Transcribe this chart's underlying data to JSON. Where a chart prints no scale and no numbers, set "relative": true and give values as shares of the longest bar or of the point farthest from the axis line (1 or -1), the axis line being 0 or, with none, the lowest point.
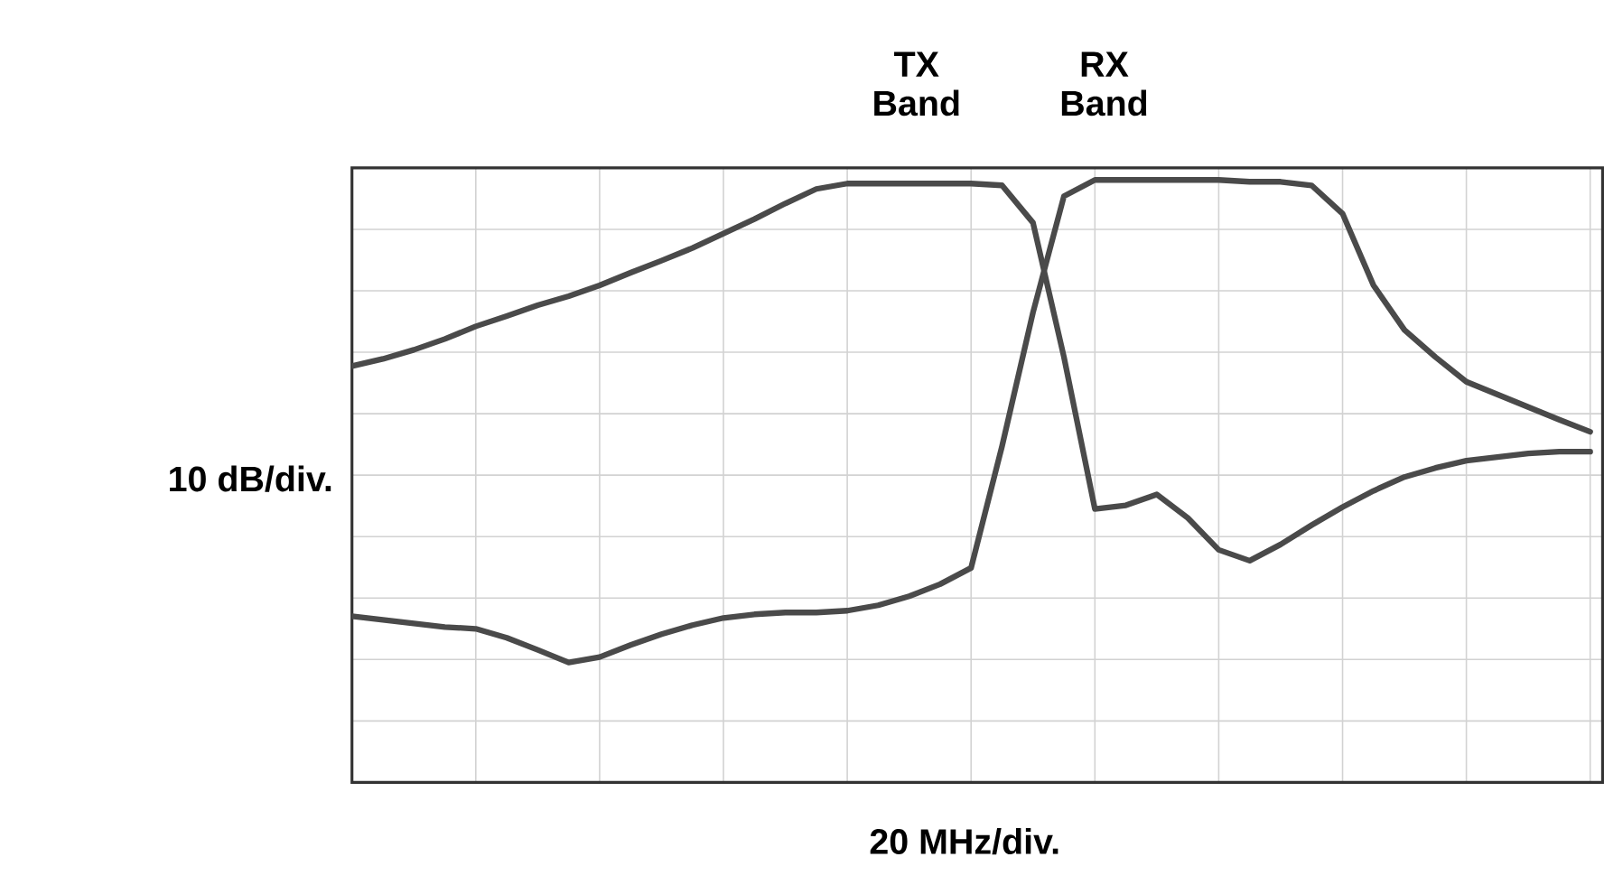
{
  "chart_data": {
    "type": "line",
    "relative": true,
    "xlabel": "20 MHz/div.",
    "ylabel": "10 dB/div.",
    "annotations": [
      "TX Band",
      "RX Band"
    ],
    "categories": [
      null,
      null,
      null,
      null,
      null,
      null,
      null,
      null,
      null,
      null,
      null,
      null,
      null,
      null,
      null,
      null,
      null,
      null,
      null,
      null,
      null,
      null,
      null,
      null,
      null,
      null,
      null,
      null,
      null,
      null,
      null,
      null,
      null,
      null,
      null,
      null,
      null,
      null,
      null,
      null,
      null
    ],
    "grid": true,
    "tick_labels": false,
    "marker": "none",
    "line_style": "solid",
    "series": [
      {
        "color": "#4a4a4a",
        "values": [
          0.691,
          0.703,
          0.718,
          0.736,
          0.757,
          0.774,
          0.792,
          0.807,
          0.825,
          0.846,
          0.866,
          0.887,
          0.911,
          0.935,
          0.961,
          0.985,
          0.994,
          0.994,
          0.994,
          0.994,
          0.994,
          0.991,
          0.929,
          0.706,
          0.454,
          0.46,
          0.478,
          0.439,
          0.386,
          0.368,
          0.395,
          0.427,
          0.457,
          0.484,
          0.507,
          0.522,
          0.534,
          0.54,
          0.546,
          0.549,
          0.549
        ]
      },
      {
        "color": "#4a4a4a",
        "values": [
          0.276,
          0.27,
          0.264,
          0.258,
          0.255,
          0.24,
          0.22,
          0.199,
          0.208,
          0.228,
          0.246,
          0.261,
          0.273,
          0.279,
          0.282,
          0.282,
          0.285,
          0.294,
          0.309,
          0.329,
          0.356,
          0.558,
          0.78,
          0.973,
          1.0,
          1.0,
          1.0,
          1.0,
          1.0,
          0.997,
          0.997,
          0.991,
          0.944,
          0.825,
          0.751,
          0.706,
          0.665,
          0.644,
          0.623,
          0.602,
          0.582
        ]
      }
    ]
  }
}
